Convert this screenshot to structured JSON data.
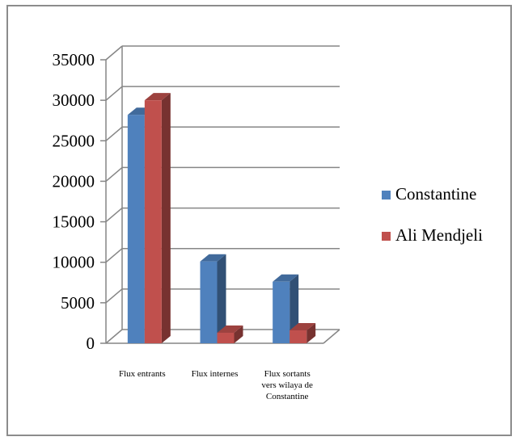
{
  "chart_data": {
    "type": "bar",
    "style": "3d-clustered-column",
    "categories": [
      "Flux entrants",
      "Flux internes",
      "Flux sortants vers wilaya de Constantine"
    ],
    "category_label_lines": [
      [
        "Flux entrants"
      ],
      [
        "Flux internes"
      ],
      [
        "Flux sortants",
        "vers wilaya de",
        "Constantine"
      ]
    ],
    "series": [
      {
        "name": "Constantine",
        "values": [
          28200,
          10100,
          7600
        ],
        "color": "#4f81bd"
      },
      {
        "name": "Ali Mendjeli",
        "values": [
          30000,
          1300,
          1600
        ],
        "color": "#c0504d"
      }
    ],
    "ylim": [
      0,
      35000
    ],
    "yticks": [
      0,
      5000,
      10000,
      15000,
      20000,
      25000,
      30000,
      35000
    ],
    "grid": true,
    "legend_position": "right",
    "title": "",
    "xlabel": "",
    "ylabel": ""
  }
}
